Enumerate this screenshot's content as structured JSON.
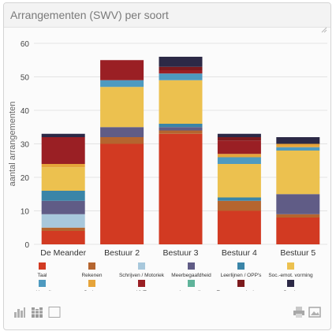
{
  "panel": {
    "title": "Arrangementen (SWV) per soort"
  },
  "toolbar": {
    "left_icons": [
      "bar-chart-icon",
      "stacked-bar-chart-icon",
      "table-view-icon"
    ],
    "right_icons": [
      "print-icon",
      "image-export-icon"
    ]
  },
  "chart_data": {
    "type": "bar",
    "stacked": true,
    "ylabel": "aantal arrangementen",
    "xlabel": "",
    "ylim": [
      0,
      60
    ],
    "yticks": [
      0,
      10,
      20,
      30,
      40,
      50,
      60
    ],
    "grid": true,
    "legend_position": "bottom",
    "categories": [
      "De Meander",
      "Bestuur 2",
      "Bestuur 3",
      "Bestuur 4",
      "Bestuur 5"
    ],
    "series": [
      {
        "name": "Taal",
        "color": "#d23a22",
        "values": [
          4,
          30,
          33,
          10,
          8
        ]
      },
      {
        "name": "Rekenen",
        "color": "#b5652f",
        "values": [
          1,
          2,
          1,
          3,
          1
        ]
      },
      {
        "name": "Schrijven / Motoriek",
        "color": "#a8c8dc",
        "values": [
          4,
          0,
          0,
          0,
          0
        ]
      },
      {
        "name": "Meerbegaafdheid",
        "color": "#605c86",
        "values": [
          4,
          3,
          1,
          0,
          6
        ]
      },
      {
        "name": "Leerlijnen / OPP's",
        "color": "#3a85a8",
        "values": [
          3,
          0,
          1,
          1,
          0
        ]
      },
      {
        "name": "Soc.-emot. vorming",
        "color": "#ecc14f",
        "values": [
          7,
          12,
          13,
          10,
          13
        ]
      },
      {
        "name": "werkhouding",
        "color": "#4e9ac0",
        "values": [
          0,
          2,
          2,
          2,
          1
        ]
      },
      {
        "name": "Ouders",
        "color": "#e6a43a",
        "values": [
          1,
          0,
          0,
          1,
          1
        ]
      },
      {
        "name": "VVE",
        "color": "#9a1f24",
        "values": [
          8,
          6,
          1,
          4,
          0
        ]
      },
      {
        "name": "Logopedie",
        "color": "#5fb39a",
        "values": [
          0,
          0,
          0,
          0,
          0
        ]
      },
      {
        "name": "Tussenvoorzieningen",
        "color": "#7c1a1d",
        "values": [
          0,
          0,
          1,
          1,
          0
        ]
      },
      {
        "name": "Overig",
        "color": "#2c2946",
        "values": [
          1,
          0,
          3,
          1,
          2
        ]
      }
    ]
  }
}
